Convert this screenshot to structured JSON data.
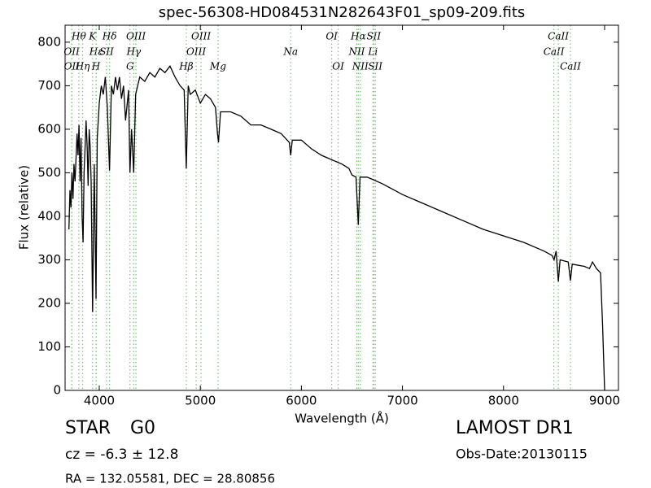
{
  "chart_data": {
    "type": "line",
    "title": "spec-56308-HD084531N282643F01_sp09-209.fits",
    "x_label": "Wavelength (Å)",
    "y_label": "Flux (relative)",
    "color": "#000000",
    "line_marker_color": "#7fbf7f",
    "xlim": [
      3662,
      9137
    ],
    "ylim": [
      0,
      839
    ],
    "xticks": [
      4000,
      5000,
      6000,
      7000,
      8000,
      9000
    ],
    "yticks": [
      0,
      100,
      200,
      300,
      400,
      500,
      600,
      700,
      800
    ],
    "x": [
      3700,
      3710,
      3720,
      3730,
      3740,
      3750,
      3760,
      3780,
      3790,
      3800,
      3810,
      3820,
      3830,
      3840,
      3850,
      3860,
      3870,
      3880,
      3890,
      3900,
      3910,
      3920,
      3934,
      3950,
      3968,
      3980,
      4000,
      4020,
      4040,
      4060,
      4080,
      4102,
      4120,
      4140,
      4160,
      4180,
      4200,
      4220,
      4240,
      4260,
      4290,
      4304,
      4320,
      4341,
      4360,
      4380,
      4400,
      4450,
      4500,
      4550,
      4600,
      4650,
      4700,
      4750,
      4800,
      4840,
      4861,
      4880,
      4900,
      4950,
      5000,
      5050,
      5100,
      5150,
      5170,
      5180,
      5200,
      5300,
      5400,
      5500,
      5600,
      5700,
      5800,
      5880,
      5894,
      5910,
      6000,
      6100,
      6200,
      6300,
      6400,
      6470,
      6500,
      6540,
      6563,
      6580,
      6650,
      6700,
      6800,
      7000,
      7200,
      7400,
      7600,
      7800,
      8000,
      8200,
      8400,
      8480,
      8500,
      8520,
      8542,
      8560,
      8640,
      8662,
      8680,
      8800,
      8850,
      8880,
      8920,
      8960,
      8980,
      9000
    ],
    "values": [
      370,
      460,
      420,
      500,
      440,
      520,
      480,
      590,
      540,
      610,
      480,
      580,
      400,
      340,
      500,
      560,
      620,
      560,
      470,
      600,
      560,
      480,
      180,
      520,
      210,
      580,
      660,
      700,
      680,
      720,
      650,
      505,
      700,
      680,
      720,
      690,
      720,
      670,
      700,
      620,
      690,
      500,
      600,
      500,
      680,
      700,
      720,
      710,
      730,
      720,
      740,
      730,
      745,
      720,
      700,
      690,
      510,
      700,
      680,
      690,
      660,
      680,
      670,
      650,
      590,
      570,
      640,
      640,
      630,
      610,
      610,
      600,
      590,
      570,
      540,
      575,
      575,
      555,
      540,
      530,
      520,
      510,
      495,
      490,
      380,
      490,
      490,
      485,
      475,
      450,
      430,
      410,
      390,
      370,
      355,
      340,
      320,
      310,
      300,
      320,
      250,
      300,
      295,
      252,
      290,
      285,
      280,
      295,
      280,
      270,
      150,
      0
    ],
    "annotations": [
      {
        "label": "OII",
        "x": 3727
      },
      {
        "label": "OII",
        "x": 3729
      },
      {
        "label": "Hθ",
        "x": 3798
      },
      {
        "label": "Hη",
        "x": 3835
      },
      {
        "label": "K",
        "x": 3934
      },
      {
        "label": "Hε",
        "x": 3970
      },
      {
        "label": "H",
        "x": 3968
      },
      {
        "label": "SII",
        "x": 4072
      },
      {
        "label": "Hδ",
        "x": 4102
      },
      {
        "label": "G",
        "x": 4304
      },
      {
        "label": "Hγ",
        "x": 4341
      },
      {
        "label": "OIII",
        "x": 4363
      },
      {
        "label": "Hβ",
        "x": 4861
      },
      {
        "label": "OIII",
        "x": 4959
      },
      {
        "label": "OIII",
        "x": 5007
      },
      {
        "label": "Mg",
        "x": 5175
      },
      {
        "label": "Na",
        "x": 5894
      },
      {
        "label": "OI",
        "x": 6300
      },
      {
        "label": "OI",
        "x": 6364
      },
      {
        "label": "NII",
        "x": 6548
      },
      {
        "label": "Hα",
        "x": 6563
      },
      {
        "label": "NII",
        "x": 6583
      },
      {
        "label": "Li",
        "x": 6708
      },
      {
        "label": "SII",
        "x": 6716
      },
      {
        "label": "SII",
        "x": 6731
      },
      {
        "label": "CaII",
        "x": 8498
      },
      {
        "label": "CaII",
        "x": 8542
      },
      {
        "label": "CaII",
        "x": 8662
      }
    ],
    "class": "STAR",
    "subclass": "G0",
    "redshift": "cz = -6.3 ± 12.8",
    "survey": "LAMOST DR1",
    "obs_date": "Obs-Date:20130115",
    "coords": "RA = 132.05581, DEC = 28.80856"
  }
}
